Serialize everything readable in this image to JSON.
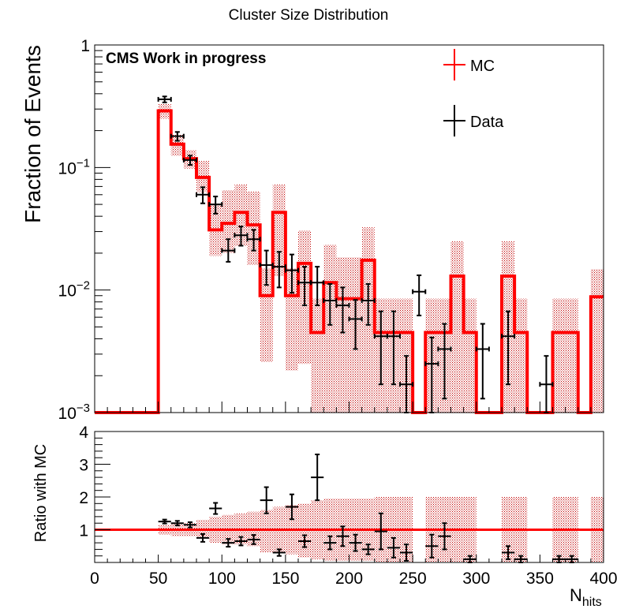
{
  "chart_data": {
    "type": "histogram",
    "title": "Cluster Size Distribution",
    "annotation": "CMS Work in progress",
    "xlabel_main": "N",
    "xlabel_sub": "hits",
    "xlim": [
      0,
      400
    ],
    "bin_width": 10,
    "x_ticks": [
      0,
      50,
      100,
      150,
      200,
      250,
      300,
      350,
      400
    ],
    "legend_placement": "top-right",
    "colors": {
      "mc": "#ff0000",
      "band": "#c00000",
      "data": "#000000"
    },
    "top_panel": {
      "ylabel": "Fraction of Events",
      "yscale": "log",
      "ylim": [
        0.001,
        1
      ],
      "y_ticks": [
        {
          "value": 0.001,
          "base": "10",
          "exp": "−3"
        },
        {
          "value": 0.01,
          "base": "10",
          "exp": "−2"
        },
        {
          "value": 0.1,
          "base": "10",
          "exp": "−1"
        },
        {
          "value": 1,
          "base": "1",
          "exp": ""
        }
      ],
      "series": [
        {
          "name": "MC",
          "style": "step",
          "bin_edges": [
            0,
            50,
            60,
            70,
            80,
            90,
            100,
            110,
            120,
            130,
            140,
            150,
            160,
            170,
            180,
            190,
            200,
            210,
            220,
            230,
            240,
            250,
            260,
            270,
            280,
            290,
            300,
            310,
            320,
            330,
            340,
            350,
            360,
            370,
            380,
            390,
            400
          ],
          "values": [
            0.001,
            0.29,
            0.155,
            0.118,
            0.083,
            0.031,
            0.035,
            0.043,
            0.034,
            0.009,
            0.043,
            0.009,
            0.0165,
            0.0045,
            0.0115,
            0.0085,
            0.0085,
            0.0175,
            0.0045,
            0.0045,
            0.0045,
            0.001,
            0.0045,
            0.0045,
            0.013,
            0.0045,
            0.001,
            0.001,
            0.013,
            0.0045,
            0.001,
            0.001,
            0.0045,
            0.0045,
            0.001,
            0.0088
          ],
          "err_low": [
            0,
            0.04,
            0.03,
            0.02,
            0.02,
            0.012,
            0.015,
            0.02,
            0.018,
            0.0064,
            0.03,
            0.0068,
            0.014,
            0.004,
            0.0108,
            0.008,
            0.0082,
            0.017,
            0.0044,
            0.0044,
            0.0044,
            0,
            0.0044,
            0.0044,
            0.0128,
            0.0044,
            0,
            0,
            0.0128,
            0.0044,
            0,
            0,
            0.0044,
            0.0044,
            0,
            0.0087
          ],
          "err_high": [
            0,
            0.04,
            0.03,
            0.02,
            0.03,
            0.02,
            0.03,
            0.03,
            0.03,
            0.006,
            0.03,
            0.006,
            0.014,
            0.004,
            0.012,
            0.01,
            0.01,
            0.015,
            0.004,
            0.004,
            0.004,
            0,
            0.004,
            0.004,
            0.012,
            0.004,
            0,
            0,
            0.012,
            0.004,
            0,
            0,
            0.004,
            0.004,
            0,
            0.006
          ]
        },
        {
          "name": "Data",
          "style": "errorbar",
          "x": [
            55,
            65,
            75,
            85,
            95,
            105,
            115,
            125,
            135,
            145,
            155,
            165,
            175,
            185,
            195,
            205,
            215,
            225,
            235,
            245,
            255,
            265,
            275,
            305,
            325,
            355
          ],
          "y": [
            0.36,
            0.18,
            0.115,
            0.06,
            0.05,
            0.021,
            0.028,
            0.026,
            0.016,
            0.0155,
            0.0145,
            0.0115,
            0.0115,
            0.0082,
            0.0075,
            0.0058,
            0.0082,
            0.0042,
            0.0042,
            0.0017,
            0.0097,
            0.0025,
            0.0033,
            0.0033,
            0.0042,
            0.0017
          ],
          "y_err_low": [
            0.02,
            0.015,
            0.01,
            0.009,
            0.008,
            0.004,
            0.005,
            0.005,
            0.005,
            0.005,
            0.005,
            0.004,
            0.004,
            0.003,
            0.003,
            0.0025,
            0.003,
            0.0025,
            0.0025,
            0.0012,
            0.0035,
            0.0016,
            0.002,
            0.002,
            0.0025,
            0.0012
          ],
          "y_err_high": [
            0.02,
            0.015,
            0.01,
            0.009,
            0.008,
            0.005,
            0.005,
            0.005,
            0.005,
            0.005,
            0.005,
            0.004,
            0.004,
            0.003,
            0.003,
            0.0025,
            0.003,
            0.0025,
            0.0025,
            0.0012,
            0.0035,
            0.0016,
            0.002,
            0.002,
            0.0025,
            0.0012
          ]
        }
      ]
    },
    "ratio_panel": {
      "ylabel": "Ratio with MC",
      "ylim": [
        0,
        4
      ],
      "y_ticks": [
        1,
        2,
        3,
        4
      ],
      "reference_line": 1,
      "band": {
        "bin_edges": [
          50,
          60,
          70,
          80,
          90,
          100,
          110,
          120,
          130,
          140,
          150,
          160,
          170,
          180,
          190,
          200,
          210,
          220,
          230,
          240,
          250,
          260,
          270,
          280,
          290,
          300,
          310,
          320,
          330,
          340,
          350,
          360,
          370,
          380,
          390,
          400
        ],
        "low": [
          0.85,
          0.8,
          0.8,
          0.75,
          0.6,
          0.55,
          0.55,
          0.5,
          0.3,
          0.3,
          0.25,
          0.15,
          0.1,
          0.05,
          0.05,
          0.05,
          0.05,
          0,
          0,
          0,
          1,
          0,
          0,
          0,
          0,
          1,
          1,
          0,
          0,
          1,
          1,
          0,
          0,
          1,
          0
        ],
        "high": [
          1.15,
          1.2,
          1.2,
          1.3,
          1.4,
          1.45,
          1.5,
          1.55,
          1.6,
          1.7,
          1.75,
          1.8,
          1.9,
          1.95,
          1.95,
          1.95,
          1.95,
          2,
          2,
          2,
          1,
          2,
          2,
          2,
          2,
          1,
          1,
          2,
          2,
          1,
          1,
          2,
          2,
          1,
          2
        ]
      },
      "points": {
        "x": [
          55,
          65,
          75,
          85,
          95,
          105,
          115,
          125,
          135,
          145,
          155,
          165,
          175,
          185,
          195,
          205,
          215,
          225,
          235,
          245,
          265,
          275,
          295,
          325,
          335,
          365,
          375
        ],
        "y": [
          1.25,
          1.2,
          1.15,
          0.75,
          1.65,
          0.6,
          0.65,
          0.7,
          1.9,
          0.3,
          1.7,
          0.65,
          2.6,
          0.6,
          0.8,
          0.6,
          0.4,
          0.95,
          0.45,
          0.3,
          0.5,
          0.8,
          0.1,
          0.3,
          0.1,
          0.1,
          0.1
        ],
        "err": [
          0.06,
          0.07,
          0.08,
          0.12,
          0.17,
          0.12,
          0.13,
          0.14,
          0.4,
          0.1,
          0.38,
          0.18,
          0.7,
          0.2,
          0.3,
          0.25,
          0.15,
          0.55,
          0.3,
          0.25,
          0.35,
          0.4,
          0.1,
          0.2,
          0.1,
          0.1,
          0.1
        ]
      }
    }
  }
}
